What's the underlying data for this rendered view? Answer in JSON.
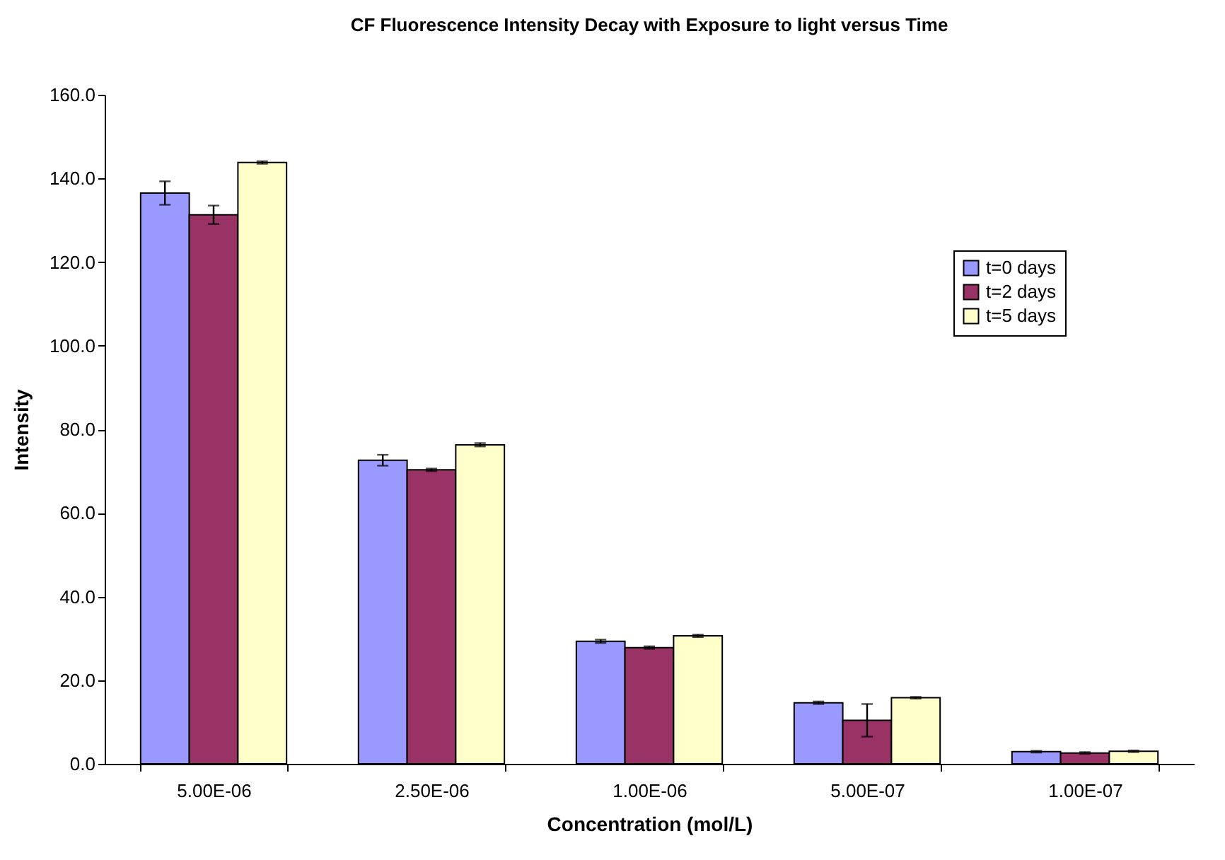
{
  "chart_data": {
    "type": "bar",
    "title": "CF Fluorescence Intensity Decay with Exposure to light versus Time",
    "xlabel": "Concentration (mol/L)",
    "ylabel": "Intensity",
    "categories": [
      "5.00E-06",
      "2.50E-06",
      "1.00E-06",
      "5.00E-07",
      "1.00E-07"
    ],
    "series": [
      {
        "name": "t=0 days",
        "color": "#9999ff",
        "values": [
          136.5,
          72.6,
          29.3,
          14.6,
          2.9
        ],
        "errors": [
          2.8,
          1.3,
          0.4,
          0.3,
          0.2
        ]
      },
      {
        "name": "t=2 days",
        "color": "#993366",
        "values": [
          131.3,
          70.3,
          27.8,
          10.4,
          2.6
        ],
        "errors": [
          2.2,
          0.3,
          0.3,
          3.9,
          0.2
        ]
      },
      {
        "name": "t=5 days",
        "color": "#ffffcc",
        "values": [
          143.8,
          76.3,
          30.6,
          15.8,
          3.0
        ],
        "errors": [
          0.3,
          0.4,
          0.3,
          0.2,
          0.2
        ]
      }
    ],
    "ylim": [
      0,
      160
    ],
    "yticks": [
      {
        "value": 0,
        "label": "0.0"
      },
      {
        "value": 20,
        "label": "20.0"
      },
      {
        "value": 40,
        "label": "40.0"
      },
      {
        "value": 60,
        "label": "60.0"
      },
      {
        "value": 80,
        "label": "80.0"
      },
      {
        "value": 100,
        "label": "100.0"
      },
      {
        "value": 120,
        "label": "120.0"
      },
      {
        "value": 140,
        "label": "140.0"
      },
      {
        "value": 160,
        "label": "160.0"
      }
    ],
    "legend": "right",
    "grid": false
  }
}
